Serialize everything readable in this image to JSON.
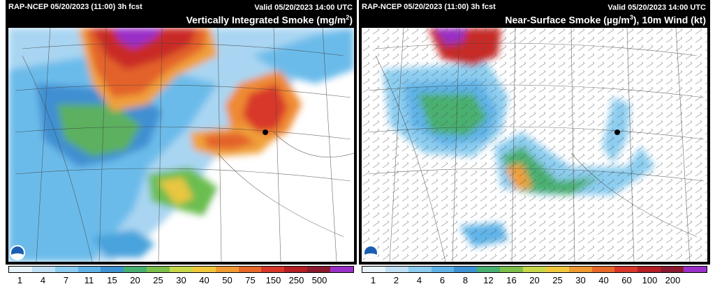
{
  "panels": [
    {
      "model_run": "RAP-NCEP 05/20/2023 (11:00) 3h fcst",
      "valid": "Valid 05/20/2023 14:00 UTC",
      "title_main": "Vertically Integrated Smoke (mg/m",
      "title_sup": "2",
      "title_end": ")",
      "colorbar_labels": [
        "1",
        "4",
        "7",
        "11",
        "15",
        "20",
        "25",
        "30",
        "40",
        "50",
        "75",
        "150",
        "250",
        "500"
      ],
      "colorbar_colors": [
        "#e8f3fb",
        "#bfe0f5",
        "#8ccdf0",
        "#5fb3e8",
        "#3e93d4",
        "#48b070",
        "#7cc04b",
        "#c7d84a",
        "#f1c83c",
        "#f09a33",
        "#e86a2b",
        "#d8372a",
        "#b41f24",
        "#8b1a30",
        "#9b30c8"
      ]
    },
    {
      "model_run": "RAP-NCEP 05/20/2023 (11:00) 3h fcst",
      "valid": "Valid 05/20/2023 14:00 UTC",
      "title_main": "Near-Surface Smoke (µg/m",
      "title_sup": "3",
      "title_end": "), 10m Wind (kt)",
      "colorbar_labels": [
        "1",
        "2",
        "4",
        "6",
        "8",
        "12",
        "16",
        "20",
        "25",
        "30",
        "40",
        "60",
        "100",
        "200"
      ],
      "colorbar_colors": [
        "#e8f3fb",
        "#bfe0f5",
        "#8ccdf0",
        "#5fb3e8",
        "#3e93d4",
        "#48b070",
        "#7cc04b",
        "#c7d84a",
        "#f1c83c",
        "#f09a33",
        "#e86a2b",
        "#d8372a",
        "#b41f24",
        "#8b1a30",
        "#9b30c8"
      ]
    }
  ]
}
